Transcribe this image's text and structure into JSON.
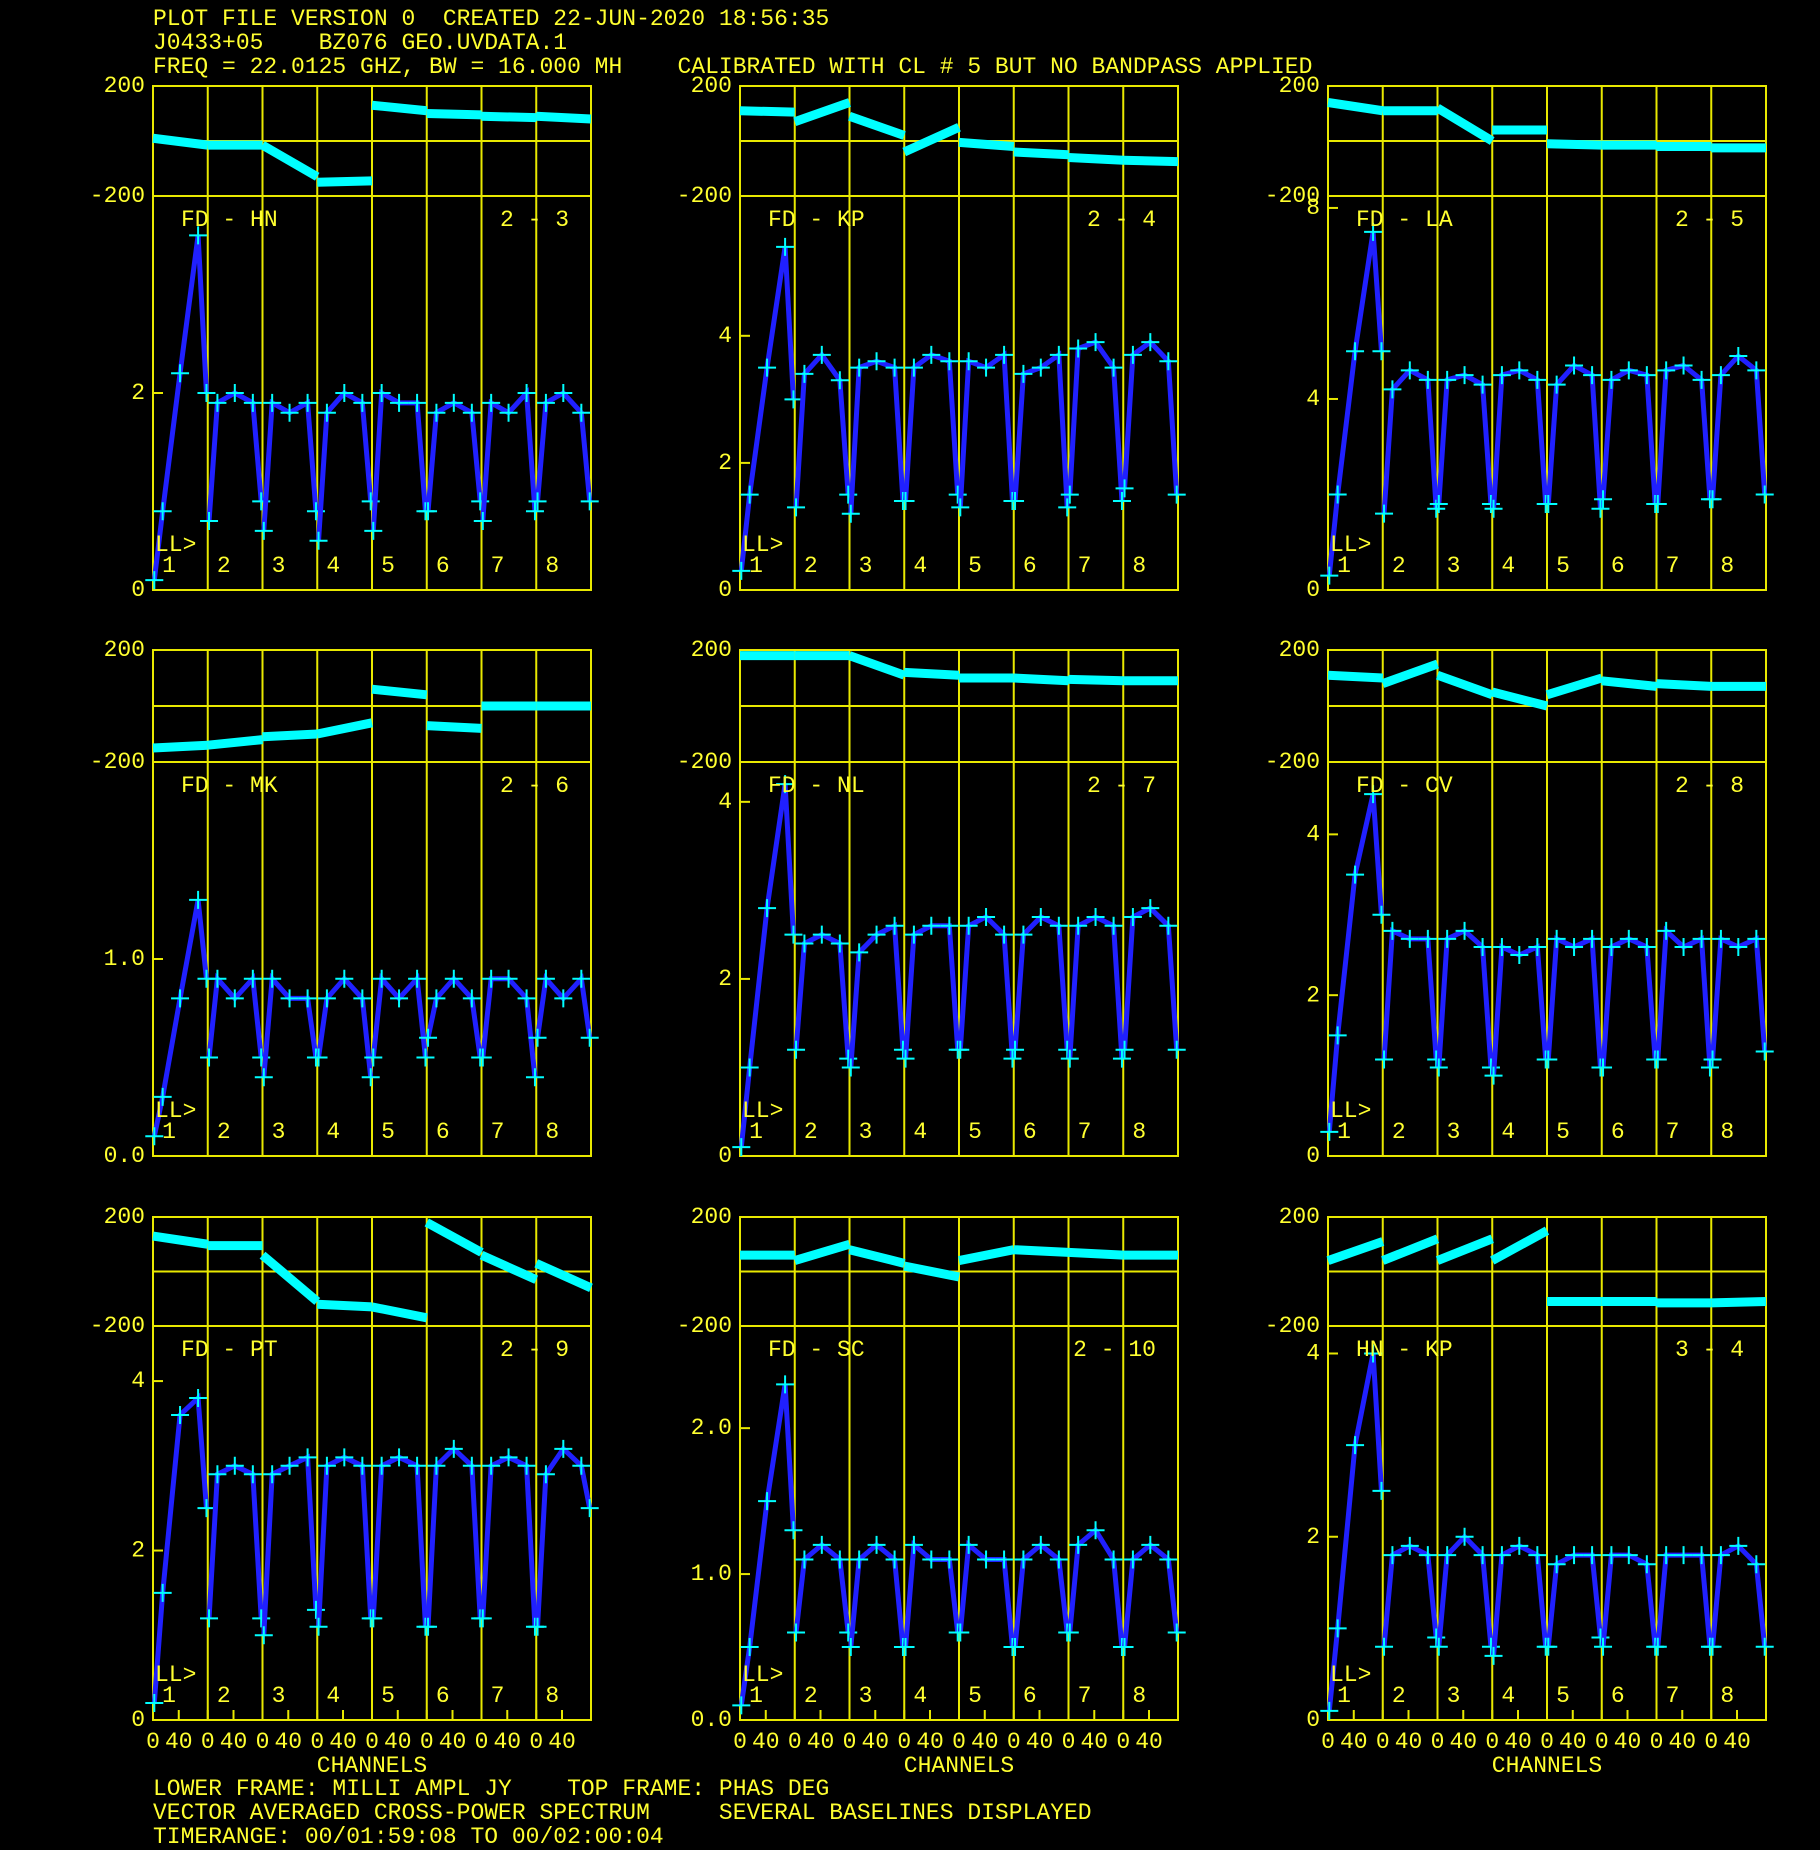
{
  "header": {
    "line1": "PLOT FILE VERSION 0  CREATED 22-JUN-2020 18:56:35",
    "line2": "J0433+05    BZ076 GEO.UVDATA.1",
    "line3": "FREQ = 22.0125 GHZ, BW = 16.000 MH    CALIBRATED WITH CL # 5 BUT NO BANDPASS APPLIED"
  },
  "footer": {
    "line1": "LOWER FRAME: MILLI AMPL JY    TOP FRAME: PHAS DEG",
    "line2": "VECTOR AVERAGED CROSS-POWER SPECTRUM     SEVERAL BASELINES DISPLAYED",
    "line3": "TIMERANGE: 00/01:59:08 TO 00/02:00:04"
  },
  "chart_data": [
    {
      "type": "line",
      "baseline": "FD - HN",
      "pair": "2 - 3",
      "stokes": "LL>",
      "if_labels": [
        "1",
        "2",
        "3",
        "4",
        "5",
        "6",
        "7",
        "8"
      ],
      "if_xlim": [
        0,
        85
      ],
      "channels": [
        2,
        15,
        42,
        70,
        83
      ],
      "phase_channels": [
        0,
        85
      ],
      "color": "#2020ff",
      "marker_color": "#00ffff",
      "phase_color": "#00ffff",
      "ylim": [
        0,
        4
      ],
      "yticks": [
        0,
        2
      ],
      "phase_ylim": [
        -200,
        200
      ],
      "phase_yticks": [
        -200,
        200
      ],
      "amplitude": [
        [
          0.1,
          0.8,
          2.2,
          3.6,
          2.0
        ],
        [
          0.7,
          1.9,
          2.0,
          1.9,
          0.9
        ],
        [
          0.6,
          1.9,
          1.8,
          1.9,
          0.8
        ],
        [
          0.5,
          1.8,
          2.0,
          1.9,
          0.9
        ],
        [
          0.6,
          2.0,
          1.9,
          1.9,
          0.8
        ],
        [
          0.8,
          1.8,
          1.9,
          1.8,
          0.9
        ],
        [
          0.7,
          1.9,
          1.8,
          2.0,
          0.8
        ],
        [
          0.9,
          1.9,
          2.0,
          1.8,
          0.9
        ]
      ],
      "phase": [
        [
          10,
          -15
        ],
        [
          -15,
          -15
        ],
        [
          -15,
          -130
        ],
        [
          -150,
          -145
        ],
        [
          130,
          110
        ],
        [
          100,
          95
        ],
        [
          90,
          85
        ],
        [
          90,
          80
        ]
      ]
    },
    {
      "type": "line",
      "baseline": "FD - KP",
      "pair": "2 - 4",
      "stokes": "LL>",
      "if_labels": [
        "1",
        "2",
        "3",
        "4",
        "5",
        "6",
        "7",
        "8"
      ],
      "if_xlim": [
        0,
        85
      ],
      "channels": [
        2,
        15,
        42,
        70,
        83
      ],
      "phase_channels": [
        0,
        85
      ],
      "color": "#2020ff",
      "marker_color": "#00ffff",
      "phase_color": "#00ffff",
      "ylim": [
        0,
        6.2
      ],
      "yticks": [
        0,
        2,
        4
      ],
      "phase_ylim": [
        -200,
        200
      ],
      "phase_yticks": [
        -200,
        200
      ],
      "amplitude": [
        [
          0.3,
          1.5,
          3.5,
          5.4,
          3.0
        ],
        [
          1.3,
          3.4,
          3.7,
          3.3,
          1.5
        ],
        [
          1.2,
          3.5,
          3.6,
          3.5,
          1.4
        ],
        [
          1.4,
          3.5,
          3.7,
          3.6,
          1.5
        ],
        [
          1.3,
          3.6,
          3.5,
          3.7,
          1.4
        ],
        [
          1.4,
          3.4,
          3.5,
          3.7,
          1.3
        ],
        [
          1.5,
          3.8,
          3.9,
          3.5,
          1.4
        ],
        [
          1.6,
          3.7,
          3.9,
          3.6,
          1.5
        ]
      ],
      "phase": [
        [
          110,
          105
        ],
        [
          70,
          140
        ],
        [
          90,
          20
        ],
        [
          -40,
          50
        ],
        [
          -5,
          -20
        ],
        [
          -40,
          -50
        ],
        [
          -60,
          -70
        ],
        [
          -70,
          -75
        ]
      ]
    },
    {
      "type": "line",
      "baseline": "FD - LA",
      "pair": "2 - 5",
      "stokes": "LL>",
      "if_labels": [
        "1",
        "2",
        "3",
        "4",
        "5",
        "6",
        "7",
        "8"
      ],
      "if_xlim": [
        0,
        85
      ],
      "channels": [
        2,
        15,
        42,
        70,
        83
      ],
      "phase_channels": [
        0,
        85
      ],
      "color": "#2020ff",
      "marker_color": "#00ffff",
      "phase_color": "#00ffff",
      "ylim": [
        0,
        8.25
      ],
      "yticks": [
        0,
        4,
        8
      ],
      "phase_ylim": [
        -200,
        200
      ],
      "phase_yticks": [
        -200,
        200
      ],
      "amplitude": [
        [
          0.3,
          2.0,
          5.0,
          7.5,
          5.0
        ],
        [
          1.6,
          4.2,
          4.6,
          4.4,
          1.7
        ],
        [
          1.8,
          4.4,
          4.5,
          4.3,
          1.8
        ],
        [
          1.7,
          4.5,
          4.6,
          4.4,
          1.8
        ],
        [
          1.8,
          4.3,
          4.7,
          4.5,
          1.7
        ],
        [
          1.9,
          4.4,
          4.6,
          4.5,
          1.8
        ],
        [
          1.8,
          4.6,
          4.7,
          4.4,
          1.9
        ],
        [
          1.9,
          4.5,
          4.9,
          4.6,
          2.0
        ]
      ],
      "phase": [
        [
          140,
          110
        ],
        [
          110,
          110
        ],
        [
          120,
          0
        ],
        [
          40,
          40
        ],
        [
          -10,
          -15
        ],
        [
          -15,
          -15
        ],
        [
          -20,
          -20
        ],
        [
          -25,
          -25
        ]
      ]
    },
    {
      "type": "line",
      "baseline": "FD - MK",
      "pair": "2 - 6",
      "stokes": "LL>",
      "if_labels": [
        "1",
        "2",
        "3",
        "4",
        "5",
        "6",
        "7",
        "8"
      ],
      "if_xlim": [
        0,
        85
      ],
      "channels": [
        2,
        15,
        42,
        70,
        83
      ],
      "phase_channels": [
        0,
        85
      ],
      "color": "#2020ff",
      "marker_color": "#00ffff",
      "phase_color": "#00ffff",
      "ylim": [
        0,
        2
      ],
      "yticks": [
        {
          "value": 0,
          "label": "0.0"
        },
        {
          "value": 1,
          "label": "1.0"
        }
      ],
      "phase_ylim": [
        -200,
        200
      ],
      "phase_yticks": [
        -200,
        200
      ],
      "amplitude": [
        [
          0.1,
          0.3,
          0.8,
          1.3,
          0.9
        ],
        [
          0.5,
          0.9,
          0.8,
          0.9,
          0.5
        ],
        [
          0.4,
          0.9,
          0.8,
          0.8,
          0.5
        ],
        [
          0.5,
          0.8,
          0.9,
          0.8,
          0.4
        ],
        [
          0.5,
          0.9,
          0.8,
          0.9,
          0.5
        ],
        [
          0.6,
          0.8,
          0.9,
          0.8,
          0.5
        ],
        [
          0.5,
          0.9,
          0.9,
          0.8,
          0.4
        ],
        [
          0.6,
          0.9,
          0.8,
          0.9,
          0.6
        ]
      ],
      "phase": [
        [
          -150,
          -140
        ],
        [
          -140,
          -120
        ],
        [
          -110,
          -100
        ],
        [
          -100,
          -60
        ],
        [
          60,
          40
        ],
        [
          -70,
          -80
        ],
        [
          0,
          0
        ],
        [
          0,
          0
        ]
      ]
    },
    {
      "type": "line",
      "baseline": "FD - NL",
      "pair": "2 - 7",
      "stokes": "LL>",
      "if_labels": [
        "1",
        "2",
        "3",
        "4",
        "5",
        "6",
        "7",
        "8"
      ],
      "if_xlim": [
        0,
        85
      ],
      "channels": [
        2,
        15,
        42,
        70,
        83
      ],
      "phase_channels": [
        0,
        85
      ],
      "color": "#2020ff",
      "marker_color": "#00ffff",
      "phase_color": "#00ffff",
      "ylim": [
        0,
        4.45
      ],
      "yticks": [
        0,
        2,
        4
      ],
      "phase_ylim": [
        -200,
        200
      ],
      "phase_yticks": [
        -200,
        200
      ],
      "amplitude": [
        [
          0.1,
          1.0,
          2.8,
          4.2,
          2.5
        ],
        [
          1.2,
          2.4,
          2.5,
          2.4,
          1.1
        ],
        [
          1.0,
          2.3,
          2.5,
          2.6,
          1.2
        ],
        [
          1.1,
          2.5,
          2.6,
          2.6,
          1.2
        ],
        [
          1.2,
          2.6,
          2.7,
          2.5,
          1.1
        ],
        [
          1.2,
          2.5,
          2.7,
          2.6,
          1.2
        ],
        [
          1.1,
          2.6,
          2.7,
          2.6,
          1.1
        ],
        [
          1.2,
          2.7,
          2.8,
          2.6,
          1.2
        ]
      ],
      "phase": [
        [
          180,
          180
        ],
        [
          180,
          180
        ],
        [
          180,
          110
        ],
        [
          120,
          110
        ],
        [
          100,
          100
        ],
        [
          100,
          90
        ],
        [
          95,
          90
        ],
        [
          90,
          90
        ]
      ]
    },
    {
      "type": "line",
      "baseline": "FD - CV",
      "pair": "2 - 8",
      "stokes": "LL>",
      "if_labels": [
        "1",
        "2",
        "3",
        "4",
        "5",
        "6",
        "7",
        "8"
      ],
      "if_xlim": [
        0,
        85
      ],
      "channels": [
        2,
        15,
        42,
        70,
        83
      ],
      "phase_channels": [
        0,
        85
      ],
      "color": "#2020ff",
      "marker_color": "#00ffff",
      "phase_color": "#00ffff",
      "ylim": [
        0,
        4.9
      ],
      "yticks": [
        0,
        2,
        4
      ],
      "phase_ylim": [
        -200,
        200
      ],
      "phase_yticks": [
        -200,
        200
      ],
      "amplitude": [
        [
          0.3,
          1.5,
          3.5,
          4.5,
          3.0
        ],
        [
          1.2,
          2.8,
          2.7,
          2.7,
          1.2
        ],
        [
          1.1,
          2.7,
          2.8,
          2.6,
          1.1
        ],
        [
          1.0,
          2.6,
          2.5,
          2.6,
          1.2
        ],
        [
          1.2,
          2.7,
          2.6,
          2.7,
          1.1
        ],
        [
          1.1,
          2.6,
          2.7,
          2.6,
          1.2
        ],
        [
          1.2,
          2.8,
          2.6,
          2.7,
          1.1
        ],
        [
          1.2,
          2.7,
          2.6,
          2.7,
          1.3
        ]
      ],
      "phase": [
        [
          110,
          100
        ],
        [
          80,
          150
        ],
        [
          110,
          40
        ],
        [
          50,
          0
        ],
        [
          40,
          100
        ],
        [
          90,
          70
        ],
        [
          80,
          70
        ],
        [
          70,
          70
        ]
      ]
    },
    {
      "type": "line",
      "baseline": "FD - PT",
      "pair": "2 - 9",
      "stokes": "LL>",
      "if_labels": [
        "1",
        "2",
        "3",
        "4",
        "5",
        "6",
        "7",
        "8"
      ],
      "if_xlim": [
        0,
        85
      ],
      "channels": [
        2,
        15,
        42,
        70,
        83
      ],
      "phase_channels": [
        0,
        85
      ],
      "color": "#2020ff",
      "marker_color": "#00ffff",
      "phase_color": "#00ffff",
      "ylim": [
        0,
        4.65
      ],
      "yticks": [
        0,
        2,
        4
      ],
      "phase_ylim": [
        -200,
        200
      ],
      "phase_yticks": [
        -200,
        200
      ],
      "xticks": [
        0,
        40
      ],
      "xlabel": "CHANNELS",
      "amplitude": [
        [
          0.2,
          1.5,
          3.6,
          3.8,
          2.5
        ],
        [
          1.2,
          2.9,
          3.0,
          2.9,
          1.2
        ],
        [
          1.0,
          2.9,
          3.0,
          3.1,
          1.3
        ],
        [
          1.1,
          3.0,
          3.1,
          3.0,
          1.2
        ],
        [
          1.2,
          3.0,
          3.1,
          3.0,
          1.1
        ],
        [
          1.1,
          3.0,
          3.2,
          3.0,
          1.2
        ],
        [
          1.2,
          3.0,
          3.1,
          3.0,
          1.1
        ],
        [
          1.1,
          2.9,
          3.2,
          3.0,
          2.5
        ]
      ],
      "phase": [
        [
          130,
          100
        ],
        [
          95,
          95
        ],
        [
          60,
          -110
        ],
        [
          -120,
          -130
        ],
        [
          -130,
          -170
        ],
        [
          180,
          70
        ],
        [
          60,
          -30
        ],
        [
          30,
          -60
        ]
      ]
    },
    {
      "type": "line",
      "baseline": "FD - SC",
      "pair": "2 - 10",
      "stokes": "LL>",
      "if_labels": [
        "1",
        "2",
        "3",
        "4",
        "5",
        "6",
        "7",
        "8"
      ],
      "if_xlim": [
        0,
        85
      ],
      "channels": [
        2,
        15,
        42,
        70,
        83
      ],
      "phase_channels": [
        0,
        85
      ],
      "color": "#2020ff",
      "marker_color": "#00ffff",
      "phase_color": "#00ffff",
      "ylim": [
        0,
        2.7
      ],
      "yticks": [
        {
          "value": 0,
          "label": "0.0"
        },
        {
          "value": 1,
          "label": "1.0"
        },
        {
          "value": 2,
          "label": "2.0"
        }
      ],
      "phase_ylim": [
        -200,
        200
      ],
      "phase_yticks": [
        -200,
        200
      ],
      "xticks": [
        0,
        40
      ],
      "xlabel": "CHANNELS",
      "amplitude": [
        [
          0.1,
          0.5,
          1.5,
          2.3,
          1.3
        ],
        [
          0.6,
          1.1,
          1.2,
          1.1,
          0.6
        ],
        [
          0.5,
          1.1,
          1.2,
          1.1,
          0.5
        ],
        [
          0.5,
          1.2,
          1.1,
          1.1,
          0.6
        ],
        [
          0.6,
          1.2,
          1.1,
          1.1,
          0.5
        ],
        [
          0.5,
          1.1,
          1.2,
          1.1,
          0.6
        ],
        [
          0.6,
          1.2,
          1.3,
          1.1,
          0.5
        ],
        [
          0.5,
          1.1,
          1.2,
          1.1,
          0.6
        ]
      ],
      "phase": [
        [
          60,
          60
        ],
        [
          40,
          100
        ],
        [
          80,
          30
        ],
        [
          20,
          -20
        ],
        [
          40,
          80
        ],
        [
          80,
          70
        ],
        [
          70,
          60
        ],
        [
          60,
          60
        ]
      ]
    },
    {
      "type": "line",
      "baseline": "HN - KP",
      "pair": "3 - 4",
      "stokes": "LL>",
      "if_labels": [
        "1",
        "2",
        "3",
        "4",
        "5",
        "6",
        "7",
        "8"
      ],
      "if_xlim": [
        0,
        85
      ],
      "channels": [
        2,
        15,
        42,
        70,
        83
      ],
      "phase_channels": [
        0,
        85
      ],
      "color": "#2020ff",
      "marker_color": "#00ffff",
      "phase_color": "#00ffff",
      "ylim": [
        0,
        4.3
      ],
      "yticks": [
        0,
        2,
        4
      ],
      "phase_ylim": [
        -200,
        200
      ],
      "phase_yticks": [
        -200,
        200
      ],
      "xticks": [
        0,
        40
      ],
      "xlabel": "CHANNELS",
      "amplitude": [
        [
          0.1,
          1.0,
          3.0,
          4.0,
          2.5
        ],
        [
          0.8,
          1.8,
          1.9,
          1.8,
          0.9
        ],
        [
          0.8,
          1.8,
          2.0,
          1.8,
          0.8
        ],
        [
          0.7,
          1.8,
          1.9,
          1.8,
          0.8
        ],
        [
          0.8,
          1.7,
          1.8,
          1.8,
          0.9
        ],
        [
          0.8,
          1.8,
          1.8,
          1.7,
          0.8
        ],
        [
          0.8,
          1.8,
          1.8,
          1.8,
          0.8
        ],
        [
          0.8,
          1.8,
          1.9,
          1.7,
          0.8
        ]
      ],
      "phase": [
        [
          40,
          110
        ],
        [
          40,
          120
        ],
        [
          40,
          120
        ],
        [
          40,
          150
        ],
        [
          -110,
          -110
        ],
        [
          -110,
          -110
        ],
        [
          -115,
          -115
        ],
        [
          -115,
          -110
        ]
      ]
    }
  ]
}
